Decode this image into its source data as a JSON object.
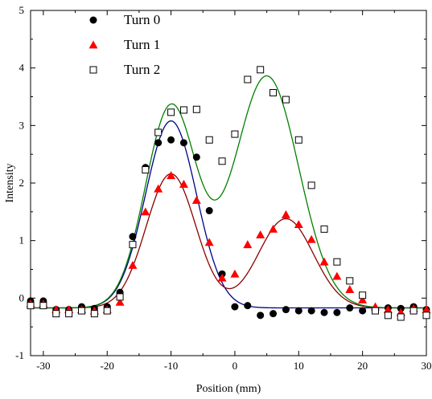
{
  "chart_data": {
    "type": "scatter",
    "xlabel": "Position (mm)",
    "ylabel": "Intensity",
    "xlim": [
      -32,
      30
    ],
    "ylim": [
      -1,
      5
    ],
    "xticks": [
      -30,
      -20,
      -10,
      0,
      10,
      20,
      30
    ],
    "xtick_labels": [
      "-30",
      "-20",
      "-10",
      "0",
      "10",
      "20",
      "30"
    ],
    "yticks": [
      -1,
      0,
      1,
      2,
      3,
      4,
      5
    ],
    "ytick_labels": [
      "-1",
      "0",
      "1",
      "2",
      "3",
      "4",
      "5"
    ],
    "grid": false,
    "legend_position": "top-left",
    "series": [
      {
        "name": "Turn 0",
        "marker": "filled-circle",
        "marker_color": "#000000",
        "fit_color": "#00008b",
        "x": [
          -32,
          -30,
          -28,
          -26,
          -24,
          -22,
          -20,
          -18,
          -16,
          -14,
          -12,
          -10,
          -8,
          -6,
          -4,
          -2,
          0,
          2,
          4,
          6,
          8,
          10,
          12,
          14,
          16,
          18,
          20,
          22,
          24,
          26,
          28,
          30
        ],
        "y": [
          -0.05,
          -0.05,
          -0.2,
          -0.2,
          -0.15,
          -0.18,
          -0.15,
          0.1,
          1.07,
          2.27,
          2.7,
          2.75,
          2.7,
          2.45,
          1.52,
          0.42,
          -0.15,
          -0.13,
          -0.3,
          -0.27,
          -0.2,
          -0.22,
          -0.22,
          -0.25,
          -0.25,
          -0.17,
          -0.22,
          -0.2,
          -0.17,
          -0.18,
          -0.15,
          -0.2
        ],
        "fit": {
          "baseline": -0.17,
          "peaks": [
            {
              "amplitude": 3.25,
              "center": -10,
              "sigma": 4.0
            }
          ]
        }
      },
      {
        "name": "Turn 1",
        "marker": "filled-triangle",
        "marker_color": "#ff0000",
        "fit_color": "#8b0000",
        "x": [
          -32,
          -30,
          -28,
          -26,
          -24,
          -22,
          -20,
          -18,
          -16,
          -14,
          -12,
          -10,
          -8,
          -6,
          -4,
          -2,
          0,
          2,
          4,
          6,
          8,
          10,
          12,
          14,
          16,
          18,
          20,
          22,
          24,
          26,
          28,
          30
        ],
        "y": [
          -0.1,
          -0.1,
          -0.2,
          -0.2,
          -0.2,
          -0.22,
          -0.2,
          -0.07,
          0.57,
          1.5,
          1.9,
          2.13,
          1.98,
          1.7,
          0.97,
          0.35,
          0.42,
          0.93,
          1.1,
          1.2,
          1.45,
          1.28,
          1.02,
          0.63,
          0.38,
          0.15,
          -0.03,
          -0.15,
          -0.2,
          -0.25,
          -0.18,
          -0.2
        ],
        "fit": {
          "baseline": -0.17,
          "peaks": [
            {
              "amplitude": 2.33,
              "center": -10,
              "sigma": 3.9
            },
            {
              "amplitude": 1.55,
              "center": 8,
              "sigma": 4.3
            }
          ]
        }
      },
      {
        "name": "Turn 2",
        "marker": "open-square",
        "marker_color": "#000000",
        "fit_color": "#008000",
        "x": [
          -32,
          -30,
          -28,
          -26,
          -24,
          -22,
          -20,
          -18,
          -16,
          -14,
          -12,
          -10,
          -8,
          -6,
          -4,
          -2,
          0,
          2,
          4,
          6,
          8,
          10,
          12,
          14,
          16,
          18,
          20,
          22,
          24,
          26,
          28,
          30
        ],
        "y": [
          -0.13,
          -0.13,
          -0.27,
          -0.27,
          -0.22,
          -0.27,
          -0.22,
          0.02,
          0.93,
          2.23,
          2.88,
          3.23,
          3.27,
          3.28,
          2.75,
          2.38,
          2.85,
          3.8,
          3.97,
          3.57,
          3.45,
          2.75,
          1.96,
          1.2,
          0.63,
          0.3,
          0.05,
          -0.22,
          -0.3,
          -0.33,
          -0.22,
          -0.3
        ],
        "fit": {
          "baseline": -0.17,
          "peaks": [
            {
              "amplitude": 3.5,
              "center": -10,
              "sigma": 4.0
            },
            {
              "amplitude": 4.03,
              "center": 5,
              "sigma": 5.0
            }
          ]
        }
      }
    ]
  }
}
